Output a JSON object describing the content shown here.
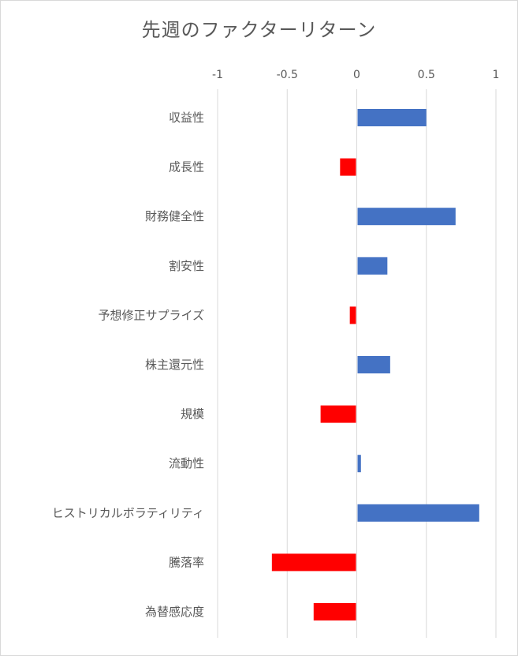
{
  "chart_data": {
    "type": "bar",
    "orientation": "horizontal",
    "title": "先週のファクターリターン",
    "categories": [
      "収益性",
      "成長性",
      "財務健全性",
      "割安性",
      "予想修正サプライズ",
      "株主還元性",
      "規模",
      "流動性",
      "ヒストリカルボラティリティ",
      "騰落率",
      "為替感応度"
    ],
    "values": [
      0.5,
      -0.12,
      0.71,
      0.22,
      -0.05,
      0.24,
      -0.26,
      0.03,
      0.88,
      -0.61,
      -0.31
    ],
    "xlim": [
      -1,
      1
    ],
    "xticks": [
      -1,
      -0.5,
      0,
      0.5,
      1
    ],
    "xtick_labels": [
      "-1",
      "-0.5",
      "0",
      "0.5",
      "1"
    ],
    "x_axis_position": "top",
    "grid": true,
    "colors": {
      "positive": "#4472C4",
      "negative": "#FF0000",
      "grid": "#d9d9d9",
      "text": "#595959"
    }
  }
}
